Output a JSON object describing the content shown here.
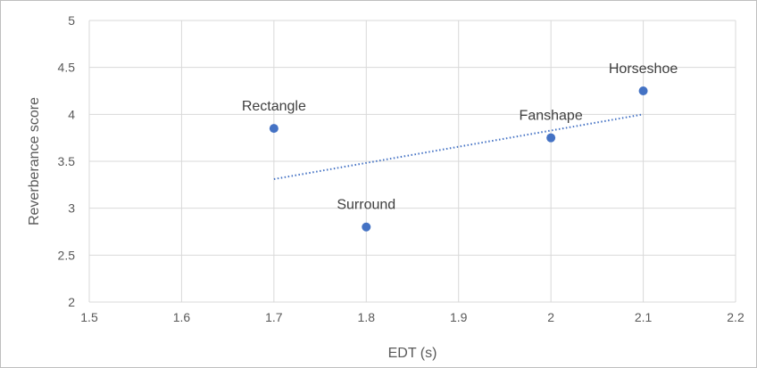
{
  "chart_data": {
    "type": "scatter",
    "title": "",
    "xlabel": "EDT (s)",
    "ylabel": "Reverberance score",
    "xlim": [
      1.5,
      2.2
    ],
    "ylim": [
      2,
      5
    ],
    "x_ticks": [
      "1.5",
      "1.6",
      "1.7",
      "1.8",
      "1.9",
      "2",
      "2.1",
      "2.2"
    ],
    "y_ticks": [
      "2",
      "2.5",
      "3",
      "3.5",
      "4",
      "4.5",
      "5"
    ],
    "grid": true,
    "legend": "none",
    "marker_color": "#4472c4",
    "points": [
      {
        "label": "Rectangle",
        "x": 1.7,
        "y": 3.85
      },
      {
        "label": "Surround",
        "x": 1.8,
        "y": 2.8
      },
      {
        "label": "Fanshape",
        "x": 2.0,
        "y": 3.75
      },
      {
        "label": "Horseshoe",
        "x": 2.1,
        "y": 4.25
      }
    ],
    "trendline": {
      "type": "linear",
      "style": "dotted",
      "x": [
        1.7,
        2.1
      ],
      "y": [
        3.31,
        4.0
      ]
    }
  }
}
